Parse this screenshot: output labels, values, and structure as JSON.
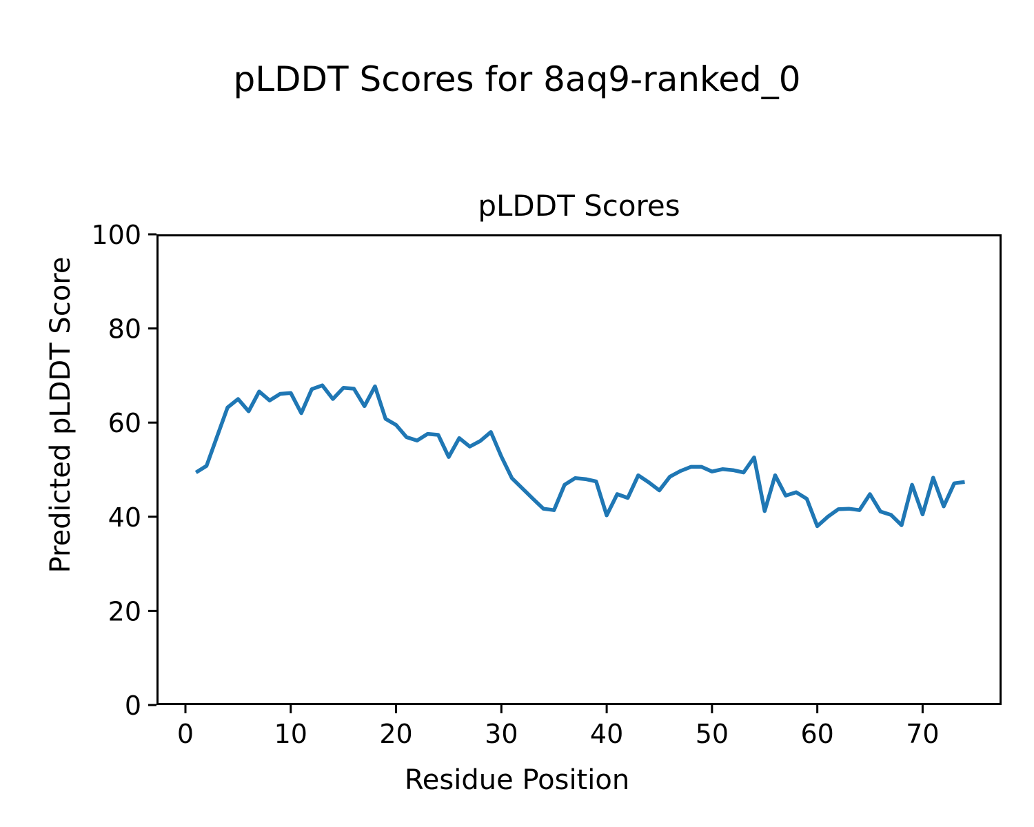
{
  "colors": {
    "background": "#ffffff",
    "text": "#000000",
    "axis": "#000000",
    "line": "#1f77b4"
  },
  "chart_data": {
    "type": "line",
    "suptitle": "pLDDT Scores for 8aq9-ranked_0",
    "title": "pLDDT Scores",
    "xlabel": "Residue Position",
    "ylabel": "Predicted pLDDT Score",
    "xlim": [
      -2.75,
      77.5
    ],
    "ylim": [
      0,
      100
    ],
    "x_ticks": [
      0,
      10,
      20,
      30,
      40,
      50,
      60,
      70
    ],
    "y_ticks": [
      0,
      20,
      40,
      60,
      80,
      100
    ],
    "grid": false,
    "legend": "none",
    "series": [
      {
        "name": "pLDDT",
        "color": "#1f77b4",
        "x": [
          1,
          2,
          3,
          4,
          5,
          6,
          7,
          8,
          9,
          10,
          11,
          12,
          13,
          14,
          15,
          16,
          17,
          18,
          19,
          20,
          21,
          22,
          23,
          24,
          25,
          26,
          27,
          28,
          29,
          30,
          31,
          32,
          33,
          34,
          35,
          36,
          37,
          38,
          39,
          40,
          41,
          42,
          43,
          44,
          45,
          46,
          47,
          48,
          49,
          50,
          51,
          52,
          53,
          54,
          55,
          56,
          57,
          58,
          59,
          60,
          61,
          62,
          63,
          64,
          65,
          66,
          67,
          68,
          69,
          70,
          71,
          72,
          73,
          74
        ],
        "y": [
          49.4,
          50.8,
          57.0,
          63.2,
          65.0,
          62.4,
          66.6,
          64.7,
          66.1,
          66.3,
          62.0,
          67.1,
          67.9,
          65.0,
          67.4,
          67.2,
          63.5,
          67.7,
          60.8,
          59.5,
          56.9,
          56.2,
          57.6,
          57.4,
          52.7,
          56.7,
          54.9,
          56.1,
          58.0,
          52.8,
          48.2,
          46.0,
          43.8,
          41.7,
          41.4,
          46.8,
          48.2,
          48.0,
          47.5,
          40.3,
          44.8,
          44.0,
          48.8,
          47.3,
          45.6,
          48.5,
          49.7,
          50.6,
          50.6,
          49.6,
          50.1,
          49.9,
          49.4,
          52.6,
          41.2,
          48.8,
          44.5,
          45.2,
          43.8,
          38.0,
          40.0,
          41.6,
          41.7,
          41.4,
          44.8,
          41.1,
          40.4,
          38.2,
          46.8,
          40.5,
          48.3,
          42.2,
          47.1,
          47.4
        ]
      }
    ]
  }
}
